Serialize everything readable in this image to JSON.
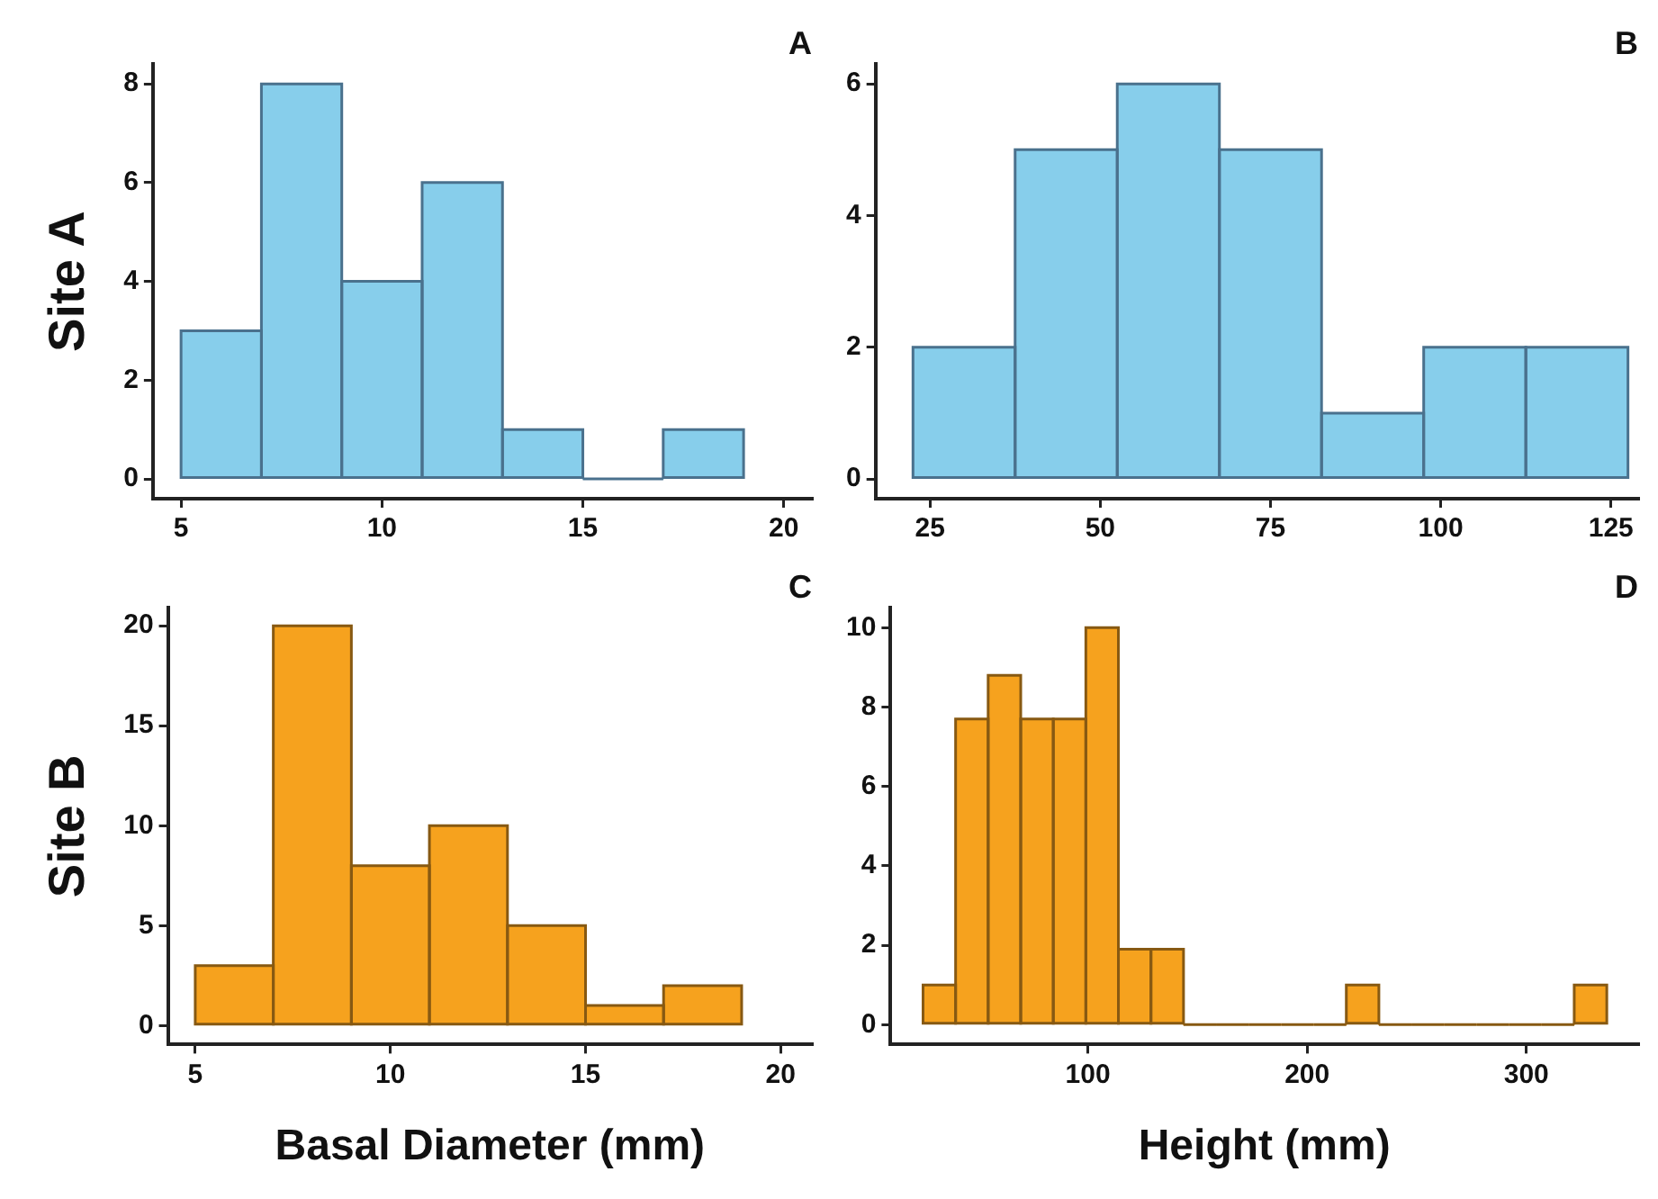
{
  "chart_data": [
    {
      "type": "histogram",
      "title": "A",
      "ylabel": "Site A",
      "bins": [
        5,
        7,
        9,
        11,
        13,
        15,
        17,
        19
      ],
      "values": [
        3,
        8,
        4,
        6,
        1,
        0,
        1
      ],
      "color": "#87ceeb",
      "xlim": [
        4.3,
        20.7
      ],
      "xticks": [
        5,
        10,
        15,
        20
      ],
      "ylim": [
        -0.4,
        8.4
      ],
      "yticks": [
        0,
        2,
        4,
        6,
        8
      ],
      "grid": false
    },
    {
      "type": "histogram",
      "title": "B",
      "bins": [
        22.5,
        37.5,
        52.5,
        67.5,
        82.5,
        97.5,
        112.5,
        127.5
      ],
      "values": [
        2,
        5,
        6,
        5,
        1,
        2,
        2
      ],
      "color": "#87ceeb",
      "xlim": [
        17,
        129
      ],
      "xticks": [
        25,
        50,
        75,
        100,
        125
      ],
      "ylim": [
        -0.3,
        6.3
      ],
      "yticks": [
        0,
        2,
        4,
        6
      ],
      "grid": false
    },
    {
      "type": "histogram",
      "title": "C",
      "ylabel": "Site B",
      "xlabel": "Basal Diameter (mm)",
      "bins": [
        5,
        7,
        9,
        11,
        13,
        15,
        17,
        19
      ],
      "values": [
        3,
        20,
        8,
        10,
        5,
        1,
        2
      ],
      "color": "#f6a21e",
      "xlim": [
        4.3,
        20.8
      ],
      "xticks": [
        5,
        10,
        15,
        20
      ],
      "ylim": [
        -0.95,
        20.9
      ],
      "yticks": [
        0,
        5,
        10,
        15,
        20
      ],
      "grid": false
    },
    {
      "type": "histogram",
      "title": "D",
      "xlabel": "Height (mm)",
      "bins": [
        24.8,
        39.7,
        54.5,
        69.4,
        84.2,
        99.1,
        113.9,
        128.8,
        143.6,
        158.5,
        173.3,
        188.2,
        203.0,
        217.9,
        232.7,
        247.6,
        262.4,
        277.3,
        292.1,
        307.0,
        321.8,
        336.7
      ],
      "values": [
        1,
        7.7,
        8.8,
        7.7,
        7.7,
        10,
        1.9,
        1.9,
        0,
        0,
        0,
        0,
        0,
        1,
        0,
        0,
        0,
        0,
        0,
        0,
        1
      ],
      "color": "#f6a21e",
      "xlim": [
        10,
        351
      ],
      "xticks": [
        100,
        200,
        300
      ],
      "ylim": [
        -0.5,
        10.5
      ],
      "yticks": [
        0,
        2,
        4,
        6,
        8,
        10
      ],
      "grid": false
    }
  ]
}
